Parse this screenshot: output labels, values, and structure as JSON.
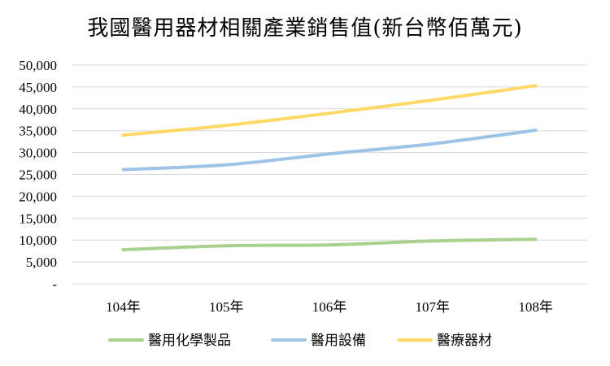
{
  "chart_data": {
    "type": "line",
    "title": "我國醫用器材相關產業銷售值(新台幣佰萬元)",
    "categories": [
      "104年",
      "105年",
      "106年",
      "107年",
      "108年"
    ],
    "ylim": [
      0,
      50000
    ],
    "yticks": [
      0,
      5000,
      10000,
      15000,
      20000,
      25000,
      30000,
      35000,
      40000,
      45000,
      50000
    ],
    "ytick_labels": [
      "-",
      "5,000",
      "10,000",
      "15,000",
      "20,000",
      "25,000",
      "30,000",
      "35,000",
      "40,000",
      "45,000",
      "50,000"
    ],
    "grid": true,
    "legend_position": "bottom",
    "series": [
      {
        "name": "醫用化學製品",
        "color": "#A9D18E",
        "values": [
          7800,
          8700,
          8900,
          9800,
          10200
        ]
      },
      {
        "name": "醫用設備",
        "color": "#9DC3E6",
        "values": [
          26100,
          27200,
          29700,
          32000,
          35100
        ]
      },
      {
        "name": "醫療器材",
        "color": "#FFD966",
        "values": [
          34000,
          36200,
          39000,
          42000,
          45300
        ]
      }
    ]
  }
}
